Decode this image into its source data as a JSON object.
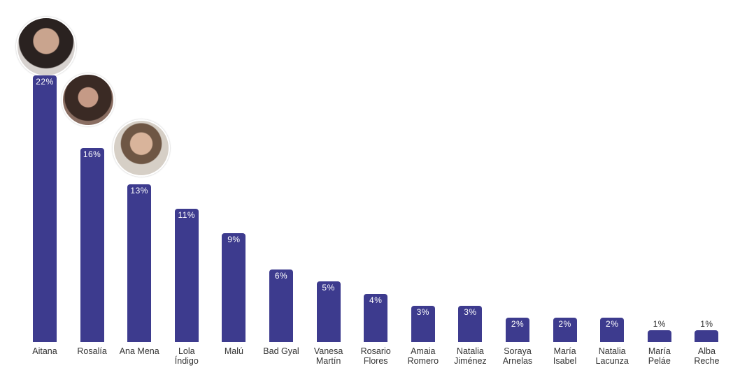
{
  "chart_data": {
    "type": "bar",
    "categories": [
      "Aitana",
      "Rosalía",
      "Ana Mena",
      "Lola\nÍndigo",
      "Malú",
      "Bad Gyal",
      "Vanesa\nMartín",
      "Rosario\nFlores",
      "Amaia\nRomero",
      "Natalia\nJiménez",
      "Soraya\nArnelas",
      "María\nIsabel",
      "Natalia\nLacunza",
      "María\nPeláe",
      "Alba\nReche"
    ],
    "values": [
      22,
      16,
      13,
      11,
      9,
      6,
      5,
      4,
      3,
      3,
      2,
      2,
      2,
      1,
      1
    ],
    "value_labels": [
      "22%",
      "16%",
      "13%",
      "11%",
      "9%",
      "6%",
      "5%",
      "4%",
      "3%",
      "3%",
      "2%",
      "2%",
      "2%",
      "1%",
      "1%"
    ],
    "color": "#3d3b8e"
  }
}
